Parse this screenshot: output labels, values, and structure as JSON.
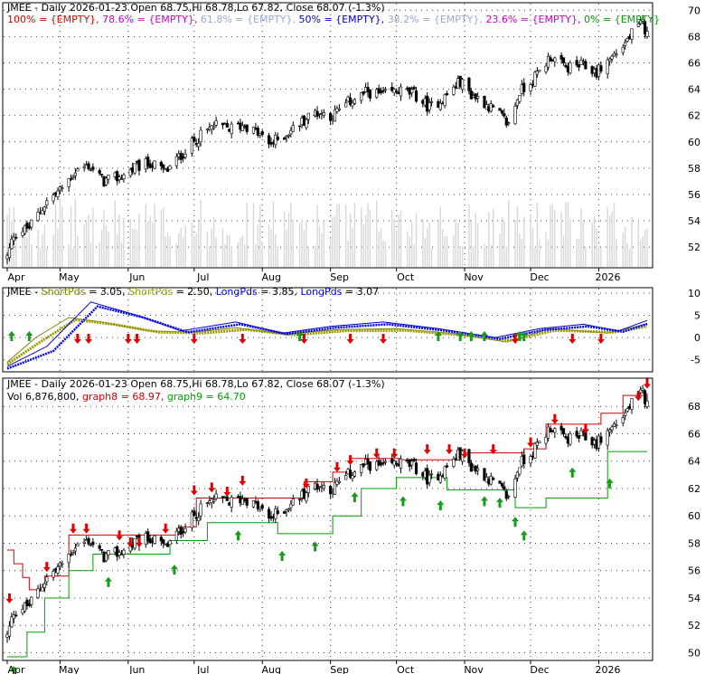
{
  "colors": {
    "background": "#ffffff",
    "candle": "#000000",
    "volume": "#d8d8d8",
    "resistance": "#d00000",
    "support": "#00a000",
    "down_arrow": "#e00000",
    "up_arrow": "#1a9a1a",
    "short_pds_1": "#808000",
    "short_pds_2": "#999900",
    "long_pds_1": "#0000cc",
    "long_pds_2": "#0000ff"
  },
  "x_axis": {
    "months": [
      "Apr",
      "May",
      "Jun",
      "Jul",
      "Aug",
      "Sep",
      "Oct",
      "Nov",
      "Dec",
      "2026"
    ]
  },
  "panel1": {
    "header": {
      "title": "JMEE - Daily 2026-01-23 Open 68.75,Hi 68.78,Lo 67.82, Close 68.07 (-1.3%)"
    },
    "fib_legend": [
      {
        "label": "100% = {EMPTY}",
        "color": "#e00000"
      },
      {
        "label": "78.6% = {EMPTY}",
        "color": "#cc00cc"
      },
      {
        "label": "61.8% = {EMPTY}",
        "color": "#99aacc"
      },
      {
        "label": "50% = {EMPTY}",
        "color": "#0000cc"
      },
      {
        "label": "38.2% = {EMPTY}",
        "color": "#99aacc"
      },
      {
        "label": "23.6% = {EMPTY}",
        "color": "#cc00cc"
      },
      {
        "label": "0% = {EMPTY}",
        "color": "#00a000"
      }
    ]
  },
  "panel2": {
    "legend": [
      {
        "label": "JMEE - ",
        "color": "#000000"
      },
      {
        "label": "ShortPds",
        "color": "#808000"
      },
      {
        "label": " = 3.05, ",
        "color": "#000000"
      },
      {
        "label": "ShortPds",
        "color": "#999900"
      },
      {
        "label": " = 2.50, ",
        "color": "#000000"
      },
      {
        "label": "LongPds",
        "color": "#0000cc"
      },
      {
        "label": " = 3.85, ",
        "color": "#000000"
      },
      {
        "label": "LongPds",
        "color": "#0000ff"
      },
      {
        "label": " = 3.07",
        "color": "#000000"
      }
    ]
  },
  "panel3": {
    "header": {
      "title": "JMEE - Daily 2026-01-23 Open 68.75,Hi 68.78,Lo 67.82, Close 68.07 (-1.3%)"
    },
    "legend": [
      {
        "label": "Vol 6,876,800",
        "color": "#000000"
      },
      {
        "label": "graph8 = 68.97",
        "color": "#d00000"
      },
      {
        "label": "graph9 = 64.70",
        "color": "#00a000"
      }
    ]
  },
  "chart_data": [
    {
      "type": "candlestick",
      "title": "JMEE - Daily 2026-01-23 Open 68.75,Hi 68.78,Lo 67.82, Close 68.07 (-1.3%)",
      "x_range": [
        "2025-04-07",
        "2026-01-23"
      ],
      "ylim": [
        50.5,
        70.5
      ],
      "yticks": [
        52,
        54,
        56,
        58,
        60,
        62,
        64,
        66,
        68,
        70
      ],
      "grid": true,
      "close_path": [
        [
          "2025-04-07",
          51.2
        ],
        [
          "2025-04-10",
          53.0
        ],
        [
          "2025-04-17",
          53.5
        ],
        [
          "2025-04-25",
          55.5
        ],
        [
          "2025-05-01",
          56.3
        ],
        [
          "2025-05-08",
          57.8
        ],
        [
          "2025-05-14",
          58.2
        ],
        [
          "2025-05-21",
          57.0
        ],
        [
          "2025-05-28",
          57.3
        ],
        [
          "2025-06-04",
          58.0
        ],
        [
          "2025-06-11",
          58.4
        ],
        [
          "2025-06-18",
          57.7
        ],
        [
          "2025-06-25",
          59.0
        ],
        [
          "2025-07-02",
          60.2
        ],
        [
          "2025-07-10",
          61.2
        ],
        [
          "2025-07-17",
          61.0
        ],
        [
          "2025-07-24",
          61.3
        ],
        [
          "2025-07-31",
          60.5
        ],
        [
          "2025-08-04",
          59.8
        ],
        [
          "2025-08-11",
          60.5
        ],
        [
          "2025-08-18",
          61.4
        ],
        [
          "2025-08-25",
          62.3
        ],
        [
          "2025-09-02",
          62.0
        ],
        [
          "2025-09-10",
          63.1
        ],
        [
          "2025-09-18",
          63.8
        ],
        [
          "2025-09-25",
          63.5
        ],
        [
          "2025-10-02",
          63.9
        ],
        [
          "2025-10-09",
          63.6
        ],
        [
          "2025-10-16",
          62.6
        ],
        [
          "2025-10-23",
          63.4
        ],
        [
          "2025-10-30",
          64.6
        ],
        [
          "2025-11-04",
          63.6
        ],
        [
          "2025-11-10",
          63.0
        ],
        [
          "2025-11-17",
          62.0
        ],
        [
          "2025-11-21",
          61.3
        ],
        [
          "2025-11-26",
          63.8
        ],
        [
          "2025-12-03",
          64.9
        ],
        [
          "2025-12-10",
          66.5
        ],
        [
          "2025-12-17",
          65.6
        ],
        [
          "2025-12-24",
          65.8
        ],
        [
          "2025-12-31",
          65.3
        ],
        [
          "2026-01-06",
          66.3
        ],
        [
          "2026-01-12",
          67.3
        ],
        [
          "2026-01-16",
          68.2
        ],
        [
          "2026-01-21",
          69.0
        ],
        [
          "2026-01-23",
          68.07
        ]
      ],
      "volume": "background bars (relative)"
    },
    {
      "type": "line",
      "title": "JMEE - ShortPds = 3.05, ShortPds = 2.50, LongPds = 3.85, LongPds = 3.07",
      "ylim": [
        -7.5,
        11
      ],
      "yticks": [
        -5,
        0,
        5,
        10
      ],
      "grid": true,
      "series": [
        {
          "name": "ShortPds",
          "value": 3.05,
          "points": [
            [
              "2025-04-07",
              -5.5
            ],
            [
              "2025-04-20",
              0
            ],
            [
              "2025-05-05",
              4.5
            ],
            [
              "2025-05-20",
              3.5
            ],
            [
              "2025-06-10",
              1.5
            ],
            [
              "2025-07-01",
              1.2
            ],
            [
              "2025-07-20",
              2.2
            ],
            [
              "2025-08-10",
              0.8
            ],
            [
              "2025-09-05",
              1.8
            ],
            [
              "2025-10-01",
              2.0
            ],
            [
              "2025-10-25",
              1.0
            ],
            [
              "2025-11-20",
              -1.0
            ],
            [
              "2025-12-10",
              2.0
            ],
            [
              "2026-01-05",
              1.0
            ],
            [
              "2026-01-23",
              3.05
            ]
          ]
        },
        {
          "name": "ShortPds",
          "value": 2.5,
          "points": [
            [
              "2025-04-07",
              -6.0
            ],
            [
              "2025-04-22",
              -1.0
            ],
            [
              "2025-05-08",
              4.0
            ],
            [
              "2025-05-25",
              3.0
            ],
            [
              "2025-06-15",
              1.2
            ],
            [
              "2025-07-05",
              1.0
            ],
            [
              "2025-07-25",
              1.8
            ],
            [
              "2025-08-15",
              0.6
            ],
            [
              "2025-09-08",
              1.5
            ],
            [
              "2025-10-05",
              1.6
            ],
            [
              "2025-10-30",
              0.6
            ],
            [
              "2025-11-22",
              -0.6
            ],
            [
              "2025-12-12",
              1.6
            ],
            [
              "2026-01-08",
              1.2
            ],
            [
              "2026-01-23",
              2.5
            ]
          ]
        },
        {
          "name": "LongPds",
          "value": 3.85,
          "points": [
            [
              "2025-04-07",
              -6.5
            ],
            [
              "2025-04-25",
              -2.0
            ],
            [
              "2025-05-15",
              8.0
            ],
            [
              "2025-06-05",
              5.0
            ],
            [
              "2025-06-25",
              1.5
            ],
            [
              "2025-07-20",
              3.5
            ],
            [
              "2025-08-10",
              1.0
            ],
            [
              "2025-09-01",
              2.5
            ],
            [
              "2025-09-25",
              3.5
            ],
            [
              "2025-10-20",
              2.0
            ],
            [
              "2025-11-15",
              0.0
            ],
            [
              "2025-12-05",
              2.0
            ],
            [
              "2025-12-25",
              3.0
            ],
            [
              "2026-01-10",
              1.5
            ],
            [
              "2026-01-23",
              3.85
            ]
          ]
        },
        {
          "name": "LongPds",
          "value": 3.07,
          "points": [
            [
              "2025-04-07",
              -7.0
            ],
            [
              "2025-04-28",
              -3.0
            ],
            [
              "2025-05-18",
              7.0
            ],
            [
              "2025-06-08",
              4.5
            ],
            [
              "2025-06-28",
              1.2
            ],
            [
              "2025-07-22",
              3.0
            ],
            [
              "2025-08-12",
              0.8
            ],
            [
              "2025-09-03",
              2.2
            ],
            [
              "2025-09-27",
              3.0
            ],
            [
              "2025-10-22",
              1.6
            ],
            [
              "2025-11-17",
              -0.3
            ],
            [
              "2025-12-07",
              1.7
            ],
            [
              "2025-12-27",
              2.5
            ],
            [
              "2026-01-12",
              1.3
            ],
            [
              "2026-01-23",
              3.07
            ]
          ]
        }
      ]
    },
    {
      "type": "candlestick",
      "title": "JMEE - Daily 2026-01-23 Open 68.75,Hi 68.78,Lo 67.82, Close 68.07 (-1.3%)",
      "ylim": [
        49.5,
        70
      ],
      "yticks": [
        50,
        52,
        54,
        56,
        58,
        60,
        62,
        64,
        66,
        68
      ],
      "grid": true,
      "series": [
        {
          "name": "graph8",
          "value": 68.97,
          "step_line": true
        },
        {
          "name": "graph9",
          "value": 64.7,
          "step_line": true
        }
      ]
    }
  ]
}
